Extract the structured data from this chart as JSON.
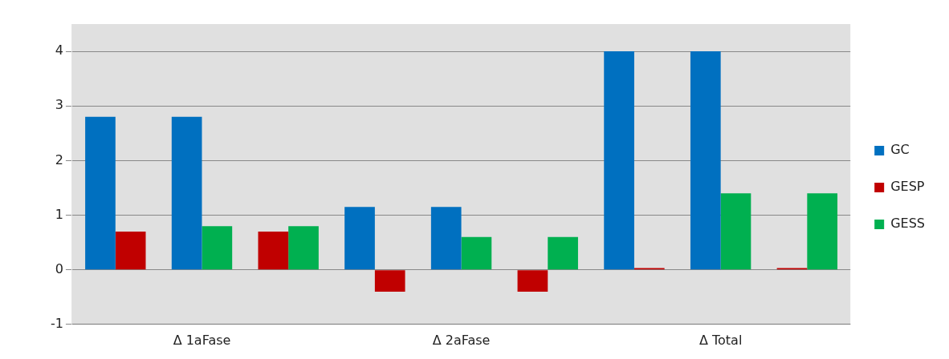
{
  "chart_data": {
    "type": "bar",
    "categories": [
      null,
      "Δ 1aFase",
      null,
      null,
      "Δ 2aFase",
      null,
      null,
      "Δ Total",
      null
    ],
    "series": [
      {
        "name": "GC",
        "color": "#0070c0",
        "values": [
          2.8,
          2.8,
          null,
          1.15,
          1.15,
          null,
          4,
          4,
          null
        ]
      },
      {
        "name": "GESP",
        "color": "#c00000",
        "values": [
          0.7,
          null,
          0.7,
          -0.4,
          null,
          -0.4,
          0.03,
          null,
          0.03
        ]
      },
      {
        "name": "GESS",
        "color": "#00b050",
        "values": [
          null,
          0.8,
          0.8,
          null,
          0.6,
          0.6,
          null,
          1.4,
          1.4
        ]
      }
    ],
    "ylim": [
      -1,
      4.5
    ],
    "yticks": [
      -1,
      0,
      1,
      2,
      3,
      4
    ],
    "grid": "y",
    "legend": "right"
  }
}
